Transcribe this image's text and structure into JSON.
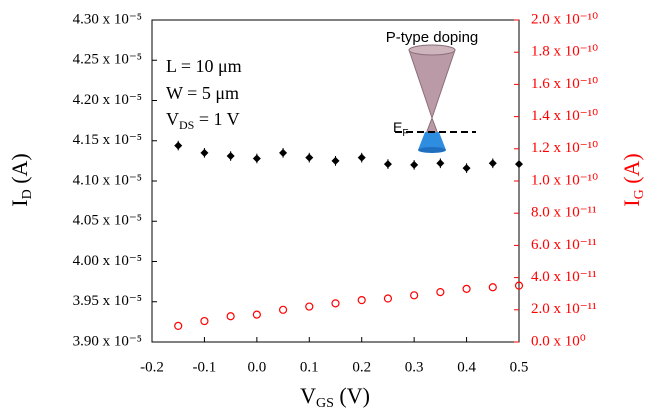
{
  "chart_data": {
    "type": "scatter",
    "x_label": [
      "V",
      "GS",
      " (V)"
    ],
    "y_label": [
      "I",
      "D",
      " (A)"
    ],
    "y2_label": [
      "I",
      "G",
      " (A)"
    ],
    "annotations": {
      "length": "L = 10 μm",
      "width": "W = 5 μm",
      "vds": [
        "V",
        "DS",
        " = 1 V"
      ],
      "doping": "P-type doping",
      "fermi": [
        "E",
        "F"
      ]
    },
    "xlim": [
      -0.2,
      0.5
    ],
    "xticks": [
      -0.2,
      -0.1,
      {
        "value": 0,
        "label": "0.0"
      },
      0.1,
      0.2,
      0.3,
      0.4,
      0.5
    ],
    "ylim": [
      3.9e-05,
      4.3e-05
    ],
    "yticks": [
      {
        "value": 3.9e-05,
        "label": "3.90 x 10⁻⁵"
      },
      {
        "value": 3.95e-05,
        "label": "3.95 x 10⁻⁵"
      },
      {
        "value": 4e-05,
        "label": "4.00 x 10⁻⁵"
      },
      {
        "value": 4.05e-05,
        "label": "4.05 x 10⁻⁵"
      },
      {
        "value": 4.1e-05,
        "label": "4.10 x 10⁻⁵"
      },
      {
        "value": 4.15e-05,
        "label": "4.15 x 10⁻⁵"
      },
      {
        "value": 4.2e-05,
        "label": "4.20 x 10⁻⁵"
      },
      {
        "value": 4.25e-05,
        "label": "4.25 x 10⁻⁵"
      },
      {
        "value": 4.3e-05,
        "label": "4.30 x 10⁻⁵"
      }
    ],
    "y2lim": [
      0,
      2e-10
    ],
    "y2ticks": [
      {
        "value": 0,
        "label": "0.0 x 10⁰"
      },
      {
        "value": 2e-11,
        "label": "2.0 x 10⁻¹¹"
      },
      {
        "value": 4e-11,
        "label": "4.0 x 10⁻¹¹"
      },
      {
        "value": 6e-11,
        "label": "6.0 x 10⁻¹¹"
      },
      {
        "value": 8e-11,
        "label": "8.0 x 10⁻¹¹"
      },
      {
        "value": 1e-10,
        "label": "1.0 x 10⁻¹⁰"
      },
      {
        "value": 1.2e-10,
        "label": "1.2 x 10⁻¹⁰"
      },
      {
        "value": 1.4e-10,
        "label": "1.4 x 10⁻¹⁰"
      },
      {
        "value": 1.6e-10,
        "label": "1.6 x 10⁻¹⁰"
      },
      {
        "value": 1.8e-10,
        "label": "1.8 x 10⁻¹⁰"
      },
      {
        "value": 2e-10,
        "label": "2.0 x 10⁻¹⁰"
      }
    ],
    "y2_color": "#ff0000",
    "x": [
      -0.15,
      -0.1,
      -0.05,
      0,
      0.05,
      0.1,
      0.15,
      0.2,
      0.25,
      0.3,
      0.35,
      0.4,
      0.45,
      0.5
    ],
    "series": [
      {
        "color": "#000000",
        "marker": "diamond",
        "axis": "y",
        "values": [
          4.144e-05,
          4.135e-05,
          4.131e-05,
          4.128e-05,
          4.135e-05,
          4.129e-05,
          4.125e-05,
          4.129e-05,
          4.121e-05,
          4.12e-05,
          4.122e-05,
          4.116e-05,
          4.122e-05,
          4.121e-05
        ],
        "errors": [
          6e-08,
          6e-08,
          6e-08,
          6e-08,
          6e-08,
          6e-08,
          6e-08,
          6e-08,
          6e-08,
          6e-08,
          6e-08,
          6e-08,
          6e-08,
          6e-08
        ]
      },
      {
        "color": "#ff0000",
        "marker": "open-circle",
        "axis": "y2",
        "values": [
          1e-11,
          1.3e-11,
          1.6e-11,
          1.7e-11,
          2e-11,
          2.2e-11,
          2.4e-11,
          2.6e-11,
          2.7e-11,
          2.9e-11,
          3.1e-11,
          3.3e-11,
          3.4e-11,
          3.5e-11
        ]
      }
    ]
  }
}
